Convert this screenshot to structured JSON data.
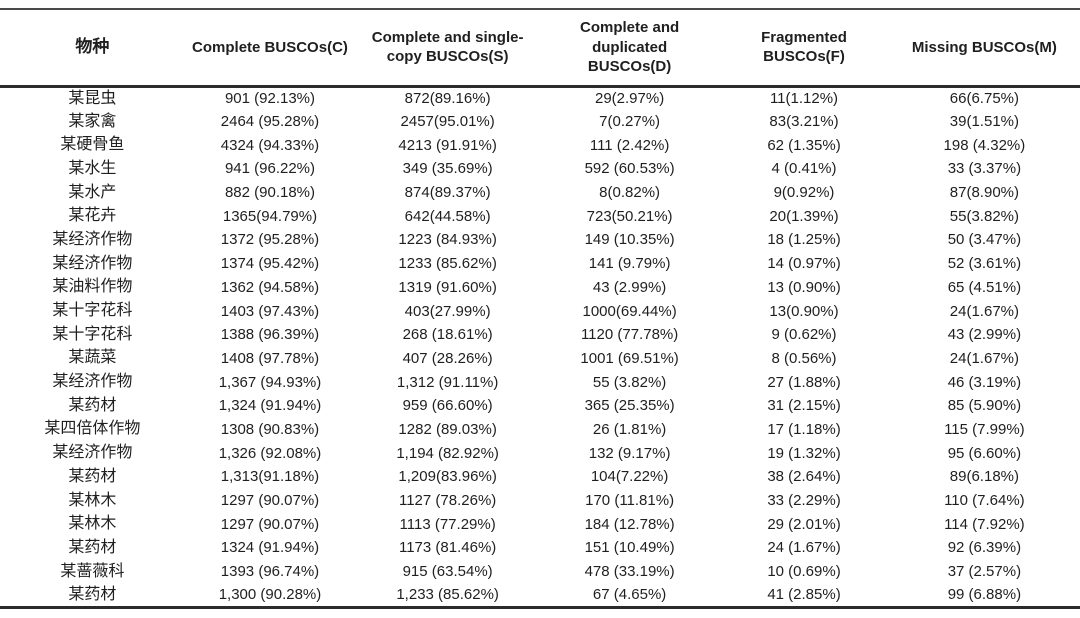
{
  "colors": {
    "background": "#ffffff",
    "text": "#1f1f1f",
    "border_light": "#4a4a4a",
    "border_heavy": "#2b2b2b"
  },
  "table": {
    "columns": [
      {
        "key": "species",
        "label": "物种"
      },
      {
        "key": "complete",
        "label": "Complete BUSCOs(C)"
      },
      {
        "key": "single_copy",
        "label": "Complete and single-copy BUSCOs(S)"
      },
      {
        "key": "duplicated",
        "label": "Complete and duplicated BUSCOs(D)"
      },
      {
        "key": "fragmented",
        "label": "Fragmented BUSCOs(F)"
      },
      {
        "key": "missing",
        "label": "Missing BUSCOs(M)"
      }
    ],
    "rows": [
      [
        "某昆虫",
        "901 (92.13%)",
        "872(89.16%)",
        "29(2.97%)",
        "11(1.12%)",
        "66(6.75%)"
      ],
      [
        "某家禽",
        "2464 (95.28%)",
        "2457(95.01%)",
        "7(0.27%)",
        "83(3.21%)",
        "39(1.51%)"
      ],
      [
        "某硬骨鱼",
        "4324 (94.33%)",
        "4213 (91.91%)",
        "111 (2.42%)",
        "62 (1.35%)",
        "198 (4.32%)"
      ],
      [
        "某水生",
        "941 (96.22%)",
        "349 (35.69%)",
        "592 (60.53%)",
        "4 (0.41%)",
        "33 (3.37%)"
      ],
      [
        "某水产",
        "882 (90.18%)",
        "874(89.37%)",
        "8(0.82%)",
        "9(0.92%)",
        "87(8.90%)"
      ],
      [
        "某花卉",
        "1365(94.79%)",
        "642(44.58%)",
        "723(50.21%)",
        "20(1.39%)",
        "55(3.82%)"
      ],
      [
        "某经济作物",
        "1372 (95.28%)",
        "1223 (84.93%)",
        "149 (10.35%)",
        "18 (1.25%)",
        "50 (3.47%)"
      ],
      [
        "某经济作物",
        "1374 (95.42%)",
        "1233 (85.62%)",
        "141 (9.79%)",
        "14 (0.97%)",
        "52 (3.61%)"
      ],
      [
        "某油料作物",
        "1362 (94.58%)",
        "1319 (91.60%)",
        "43 (2.99%)",
        "13 (0.90%)",
        "65 (4.51%)"
      ],
      [
        "某十字花科",
        "1403 (97.43%)",
        "403(27.99%)",
        "1000(69.44%)",
        "13(0.90%)",
        "24(1.67%)"
      ],
      [
        "某十字花科",
        "1388 (96.39%)",
        "268 (18.61%)",
        "1120 (77.78%)",
        "9 (0.62%)",
        "43 (2.99%)"
      ],
      [
        "某蔬菜",
        "1408 (97.78%)",
        "407 (28.26%)",
        "1001 (69.51%)",
        "8 (0.56%)",
        "24(1.67%)"
      ],
      [
        "某经济作物",
        "1,367 (94.93%)",
        "1,312 (91.11%)",
        "55 (3.82%)",
        "27 (1.88%)",
        "46 (3.19%)"
      ],
      [
        "某药材",
        "1,324 (91.94%)",
        "959 (66.60%)",
        "365 (25.35%)",
        "31 (2.15%)",
        "85 (5.90%)"
      ],
      [
        "某四倍体作物",
        "1308 (90.83%)",
        "1282 (89.03%)",
        "26 (1.81%)",
        "17 (1.18%)",
        "115 (7.99%)"
      ],
      [
        "某经济作物",
        "1,326 (92.08%)",
        "1,194 (82.92%)",
        "132 (9.17%)",
        "19 (1.32%)",
        "95 (6.60%)"
      ],
      [
        "某药材",
        "1,313(91.18%)",
        "1,209(83.96%)",
        "104(7.22%)",
        "38 (2.64%)",
        "89(6.18%)"
      ],
      [
        "某林木",
        "1297 (90.07%)",
        "1127 (78.26%)",
        "170 (11.81%)",
        "33 (2.29%)",
        "110 (7.64%)"
      ],
      [
        "某林木",
        "1297 (90.07%)",
        "1113 (77.29%)",
        "184 (12.78%)",
        "29 (2.01%)",
        "114 (7.92%)"
      ],
      [
        "某药材",
        "1324 (91.94%)",
        "1173 (81.46%)",
        "151 (10.49%)",
        "24 (1.67%)",
        "92 (6.39%)"
      ],
      [
        "某蔷薇科",
        "1393 (96.74%)",
        "915 (63.54%)",
        "478 (33.19%)",
        "10 (0.69%)",
        "37 (2.57%)"
      ],
      [
        "某药材",
        "1,300 (90.28%)",
        "1,233 (85.62%)",
        "67 (4.65%)",
        "41 (2.85%)",
        "99 (6.88%)"
      ]
    ]
  }
}
